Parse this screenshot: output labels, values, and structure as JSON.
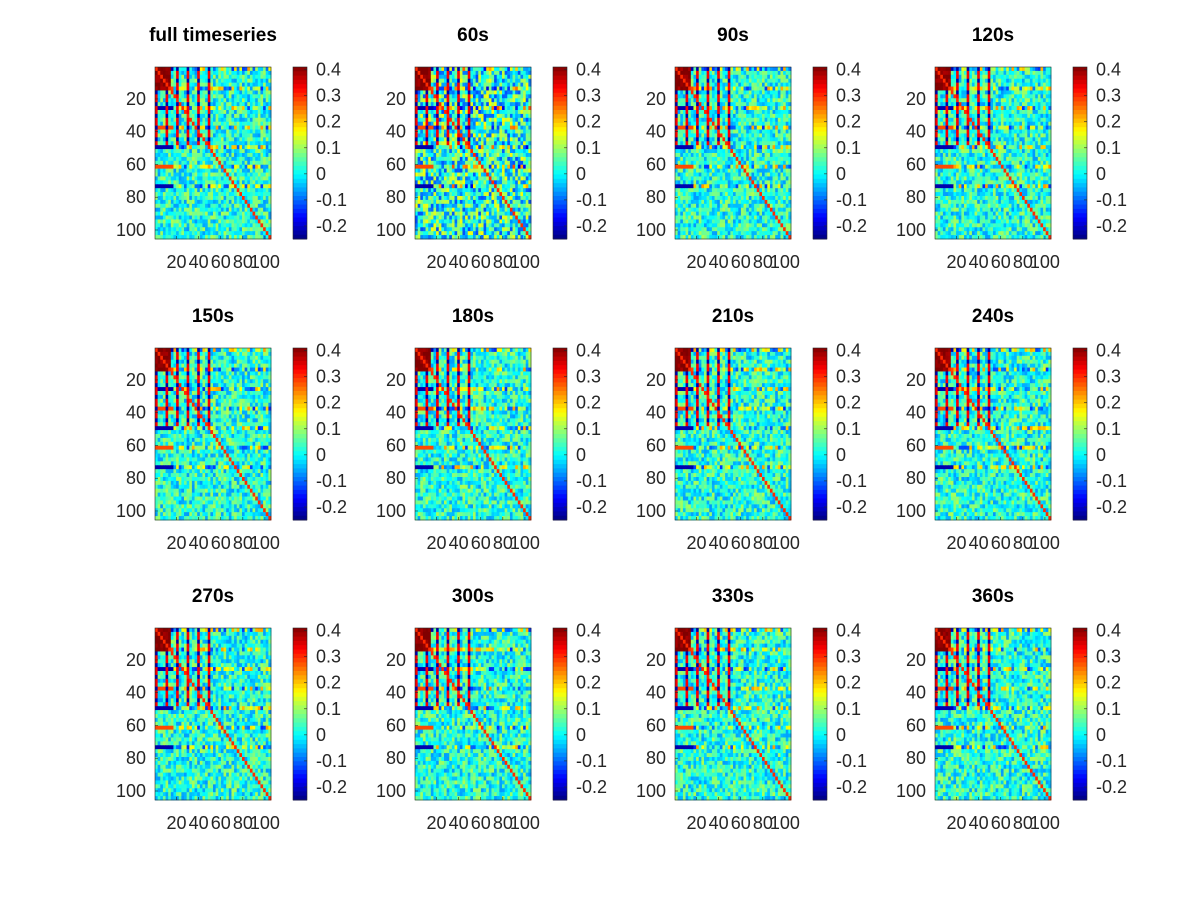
{
  "chart_data": {
    "type": "heatmap",
    "layout": "3 rows x 4 columns of correlation matrices",
    "colormap": "jet",
    "matrix_size": [
      105,
      105
    ],
    "x_ticks": [
      20,
      40,
      60,
      80,
      100
    ],
    "y_ticks": [
      20,
      40,
      60,
      80,
      100
    ],
    "colorbar": {
      "range": [
        -0.25,
        0.41
      ],
      "ticks": [
        -0.2,
        -0.1,
        0,
        0.1,
        0.2,
        0.3,
        0.4
      ]
    },
    "x_tick_labels": [
      "20",
      "40",
      "60",
      "80",
      "100"
    ],
    "y_tick_labels": [
      "20",
      "40",
      "60",
      "80",
      "100"
    ],
    "colorbar_tick_labels": [
      "0.4",
      "0.3",
      "0.2",
      "0.1",
      "0",
      "-0.1",
      "-0.2"
    ],
    "panels": [
      {
        "title": "full timeseries"
      },
      {
        "title": "60s"
      },
      {
        "title": "90s"
      },
      {
        "title": "120s"
      },
      {
        "title": "150s"
      },
      {
        "title": "180s"
      },
      {
        "title": "210s"
      },
      {
        "title": "240s"
      },
      {
        "title": "270s"
      },
      {
        "title": "300s"
      },
      {
        "title": "330s"
      },
      {
        "title": "360s"
      }
    ]
  }
}
